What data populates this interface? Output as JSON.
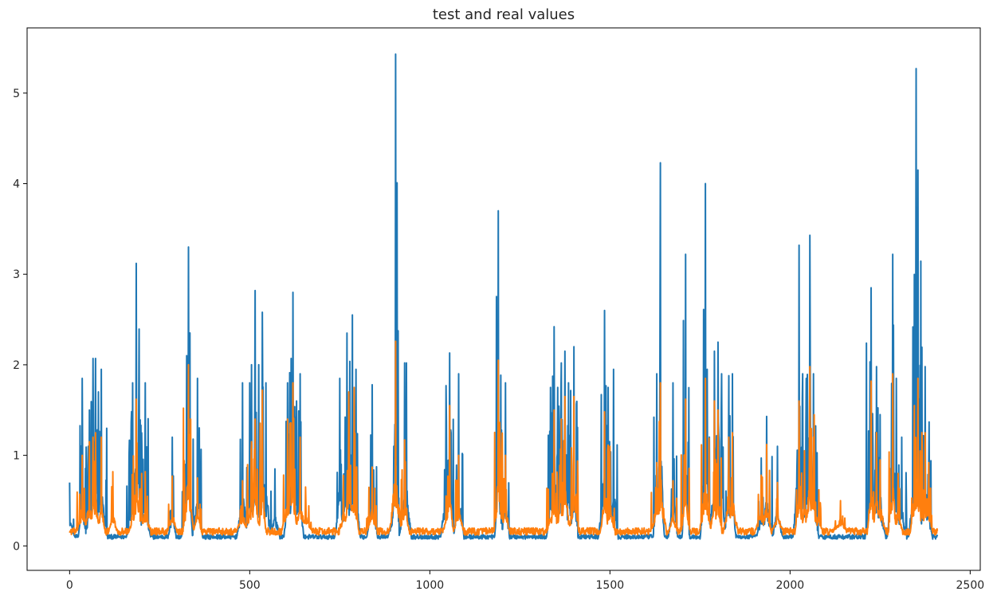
{
  "chart_data": {
    "type": "line",
    "title": "test and real values",
    "xlabel": "",
    "ylabel": "",
    "xlim": [
      -118,
      2528
    ],
    "ylim": [
      -0.27,
      5.72
    ],
    "xticks": [
      0,
      500,
      1000,
      1500,
      2000,
      2500
    ],
    "yticks": [
      0,
      1,
      2,
      3,
      4,
      5
    ],
    "grid": false,
    "legend": "none",
    "n_points": 2410,
    "series": [
      {
        "color": "#1f77b4",
        "baseline": 0.1,
        "peaks": [
          [
            0,
            0.7
          ],
          [
            35,
            1.85
          ],
          [
            55,
            1.5
          ],
          [
            65,
            2.07
          ],
          [
            72,
            2.07
          ],
          [
            80,
            1.7
          ],
          [
            88,
            1.95
          ],
          [
            170,
            1.0
          ],
          [
            175,
            1.8
          ],
          [
            185,
            3.12
          ],
          [
            195,
            1.25
          ],
          [
            210,
            1.8
          ],
          [
            285,
            1.2
          ],
          [
            320,
            0.9
          ],
          [
            325,
            2.1
          ],
          [
            330,
            3.3
          ],
          [
            355,
            1.85
          ],
          [
            480,
            1.8
          ],
          [
            500,
            1.8
          ],
          [
            505,
            2.0
          ],
          [
            515,
            2.82
          ],
          [
            525,
            2.0
          ],
          [
            535,
            2.58
          ],
          [
            545,
            1.8
          ],
          [
            570,
            0.85
          ],
          [
            605,
            1.8
          ],
          [
            615,
            2.07
          ],
          [
            620,
            2.8
          ],
          [
            630,
            1.6
          ],
          [
            640,
            1.9
          ],
          [
            750,
            1.85
          ],
          [
            770,
            2.35
          ],
          [
            785,
            2.55
          ],
          [
            795,
            1.95
          ],
          [
            840,
            1.78
          ],
          [
            900,
            1.1
          ],
          [
            905,
            5.43
          ],
          [
            930,
            2.02
          ],
          [
            935,
            2.02
          ],
          [
            1045,
            1.77
          ],
          [
            1055,
            2.13
          ],
          [
            1080,
            1.9
          ],
          [
            1190,
            3.7
          ],
          [
            1210,
            1.8
          ],
          [
            1335,
            1.75
          ],
          [
            1345,
            2.42
          ],
          [
            1355,
            1.75
          ],
          [
            1365,
            2.02
          ],
          [
            1375,
            2.15
          ],
          [
            1385,
            1.8
          ],
          [
            1400,
            2.2
          ],
          [
            1485,
            2.6
          ],
          [
            1495,
            1.75
          ],
          [
            1510,
            1.95
          ],
          [
            1630,
            1.9
          ],
          [
            1640,
            4.23
          ],
          [
            1675,
            1.8
          ],
          [
            1710,
            3.22
          ],
          [
            1765,
            4.0
          ],
          [
            1770,
            1.95
          ],
          [
            1790,
            2.15
          ],
          [
            1800,
            2.25
          ],
          [
            1810,
            1.9
          ],
          [
            1830,
            1.88
          ],
          [
            1840,
            1.9
          ],
          [
            1920,
            0.97
          ],
          [
            1935,
            1.43
          ],
          [
            1965,
            1.1
          ],
          [
            2025,
            3.32
          ],
          [
            2035,
            1.9
          ],
          [
            2045,
            1.85
          ],
          [
            2055,
            3.43
          ],
          [
            2065,
            1.9
          ],
          [
            2225,
            2.85
          ],
          [
            2240,
            1.98
          ],
          [
            2250,
            1.45
          ],
          [
            2285,
            3.22
          ],
          [
            2295,
            1.85
          ],
          [
            2310,
            1.2
          ],
          [
            2345,
            2.25
          ],
          [
            2350,
            5.27
          ],
          [
            2355,
            4.15
          ],
          [
            2375,
            1.98
          ],
          [
            2385,
            0.9
          ]
        ]
      },
      {
        "color": "#ff7f0e",
        "baseline": 0.16,
        "peaks": [
          [
            35,
            1.0
          ],
          [
            55,
            1.15
          ],
          [
            65,
            1.2
          ],
          [
            72,
            1.25
          ],
          [
            88,
            1.2
          ],
          [
            120,
            0.82
          ],
          [
            175,
            0.72
          ],
          [
            185,
            1.62
          ],
          [
            200,
            0.8
          ],
          [
            210,
            0.82
          ],
          [
            285,
            0.77
          ],
          [
            330,
            2.0
          ],
          [
            355,
            0.75
          ],
          [
            480,
            0.72
          ],
          [
            505,
            1.15
          ],
          [
            515,
            1.4
          ],
          [
            535,
            1.72
          ],
          [
            605,
            1.4
          ],
          [
            620,
            1.8
          ],
          [
            640,
            1.2
          ],
          [
            655,
            0.65
          ],
          [
            760,
            0.78
          ],
          [
            775,
            1.7
          ],
          [
            790,
            1.75
          ],
          [
            840,
            0.87
          ],
          [
            905,
            2.26
          ],
          [
            930,
            1.17
          ],
          [
            1050,
            0.77
          ],
          [
            1055,
            1.55
          ],
          [
            1080,
            1.0
          ],
          [
            1190,
            2.05
          ],
          [
            1210,
            1.0
          ],
          [
            1340,
            0.8
          ],
          [
            1345,
            1.5
          ],
          [
            1365,
            1.4
          ],
          [
            1375,
            1.65
          ],
          [
            1400,
            1.65
          ],
          [
            1485,
            1.48
          ],
          [
            1500,
            1.1
          ],
          [
            1630,
            0.92
          ],
          [
            1640,
            1.8
          ],
          [
            1675,
            0.72
          ],
          [
            1710,
            1.62
          ],
          [
            1765,
            1.85
          ],
          [
            1790,
            1.6
          ],
          [
            1800,
            1.5
          ],
          [
            1830,
            1.2
          ],
          [
            1840,
            1.25
          ],
          [
            1920,
            0.78
          ],
          [
            1935,
            1.12
          ],
          [
            1965,
            0.7
          ],
          [
            2025,
            1.6
          ],
          [
            2040,
            1.05
          ],
          [
            2055,
            1.98
          ],
          [
            2065,
            1.2
          ],
          [
            2080,
            0.62
          ],
          [
            2140,
            0.5
          ],
          [
            2225,
            1.82
          ],
          [
            2240,
            1.25
          ],
          [
            2250,
            0.95
          ],
          [
            2285,
            1.9
          ],
          [
            2300,
            0.8
          ],
          [
            2345,
            1.55
          ],
          [
            2355,
            1.85
          ],
          [
            2375,
            1.25
          ],
          [
            2385,
            0.92
          ]
        ]
      }
    ]
  }
}
